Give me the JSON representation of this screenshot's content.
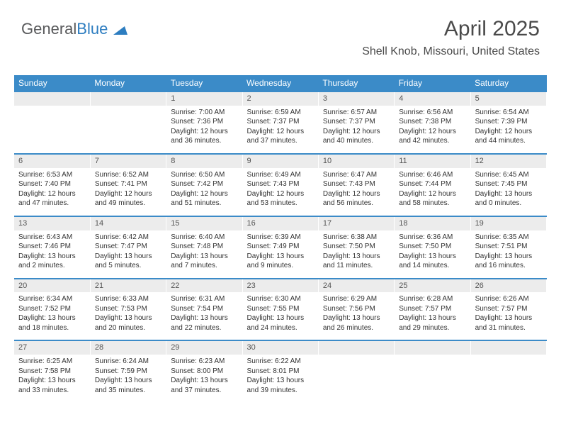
{
  "logo": {
    "text1": "General",
    "text2": "Blue"
  },
  "header": {
    "title": "April 2025",
    "location": "Shell Knob, Missouri, United States"
  },
  "colors": {
    "header_bg": "#3b8bc8",
    "header_text": "#ffffff",
    "daynum_bg": "#ececec",
    "daynum_border": "#3b8bc8",
    "body_text": "#333333",
    "logo_gray": "#58595b",
    "logo_blue": "#2d7dc0"
  },
  "daysOfWeek": [
    "Sunday",
    "Monday",
    "Tuesday",
    "Wednesday",
    "Thursday",
    "Friday",
    "Saturday"
  ],
  "weeks": [
    [
      null,
      null,
      {
        "n": "1",
        "sr": "7:00 AM",
        "ss": "7:36 PM",
        "dl": "12 hours and 36 minutes."
      },
      {
        "n": "2",
        "sr": "6:59 AM",
        "ss": "7:37 PM",
        "dl": "12 hours and 37 minutes."
      },
      {
        "n": "3",
        "sr": "6:57 AM",
        "ss": "7:37 PM",
        "dl": "12 hours and 40 minutes."
      },
      {
        "n": "4",
        "sr": "6:56 AM",
        "ss": "7:38 PM",
        "dl": "12 hours and 42 minutes."
      },
      {
        "n": "5",
        "sr": "6:54 AM",
        "ss": "7:39 PM",
        "dl": "12 hours and 44 minutes."
      }
    ],
    [
      {
        "n": "6",
        "sr": "6:53 AM",
        "ss": "7:40 PM",
        "dl": "12 hours and 47 minutes."
      },
      {
        "n": "7",
        "sr": "6:52 AM",
        "ss": "7:41 PM",
        "dl": "12 hours and 49 minutes."
      },
      {
        "n": "8",
        "sr": "6:50 AM",
        "ss": "7:42 PM",
        "dl": "12 hours and 51 minutes."
      },
      {
        "n": "9",
        "sr": "6:49 AM",
        "ss": "7:43 PM",
        "dl": "12 hours and 53 minutes."
      },
      {
        "n": "10",
        "sr": "6:47 AM",
        "ss": "7:43 PM",
        "dl": "12 hours and 56 minutes."
      },
      {
        "n": "11",
        "sr": "6:46 AM",
        "ss": "7:44 PM",
        "dl": "12 hours and 58 minutes."
      },
      {
        "n": "12",
        "sr": "6:45 AM",
        "ss": "7:45 PM",
        "dl": "13 hours and 0 minutes."
      }
    ],
    [
      {
        "n": "13",
        "sr": "6:43 AM",
        "ss": "7:46 PM",
        "dl": "13 hours and 2 minutes."
      },
      {
        "n": "14",
        "sr": "6:42 AM",
        "ss": "7:47 PM",
        "dl": "13 hours and 5 minutes."
      },
      {
        "n": "15",
        "sr": "6:40 AM",
        "ss": "7:48 PM",
        "dl": "13 hours and 7 minutes."
      },
      {
        "n": "16",
        "sr": "6:39 AM",
        "ss": "7:49 PM",
        "dl": "13 hours and 9 minutes."
      },
      {
        "n": "17",
        "sr": "6:38 AM",
        "ss": "7:50 PM",
        "dl": "13 hours and 11 minutes."
      },
      {
        "n": "18",
        "sr": "6:36 AM",
        "ss": "7:50 PM",
        "dl": "13 hours and 14 minutes."
      },
      {
        "n": "19",
        "sr": "6:35 AM",
        "ss": "7:51 PM",
        "dl": "13 hours and 16 minutes."
      }
    ],
    [
      {
        "n": "20",
        "sr": "6:34 AM",
        "ss": "7:52 PM",
        "dl": "13 hours and 18 minutes."
      },
      {
        "n": "21",
        "sr": "6:33 AM",
        "ss": "7:53 PM",
        "dl": "13 hours and 20 minutes."
      },
      {
        "n": "22",
        "sr": "6:31 AM",
        "ss": "7:54 PM",
        "dl": "13 hours and 22 minutes."
      },
      {
        "n": "23",
        "sr": "6:30 AM",
        "ss": "7:55 PM",
        "dl": "13 hours and 24 minutes."
      },
      {
        "n": "24",
        "sr": "6:29 AM",
        "ss": "7:56 PM",
        "dl": "13 hours and 26 minutes."
      },
      {
        "n": "25",
        "sr": "6:28 AM",
        "ss": "7:57 PM",
        "dl": "13 hours and 29 minutes."
      },
      {
        "n": "26",
        "sr": "6:26 AM",
        "ss": "7:57 PM",
        "dl": "13 hours and 31 minutes."
      }
    ],
    [
      {
        "n": "27",
        "sr": "6:25 AM",
        "ss": "7:58 PM",
        "dl": "13 hours and 33 minutes."
      },
      {
        "n": "28",
        "sr": "6:24 AM",
        "ss": "7:59 PM",
        "dl": "13 hours and 35 minutes."
      },
      {
        "n": "29",
        "sr": "6:23 AM",
        "ss": "8:00 PM",
        "dl": "13 hours and 37 minutes."
      },
      {
        "n": "30",
        "sr": "6:22 AM",
        "ss": "8:01 PM",
        "dl": "13 hours and 39 minutes."
      },
      null,
      null,
      null
    ]
  ],
  "labels": {
    "sunrise": "Sunrise: ",
    "sunset": "Sunset: ",
    "daylight": "Daylight: "
  }
}
